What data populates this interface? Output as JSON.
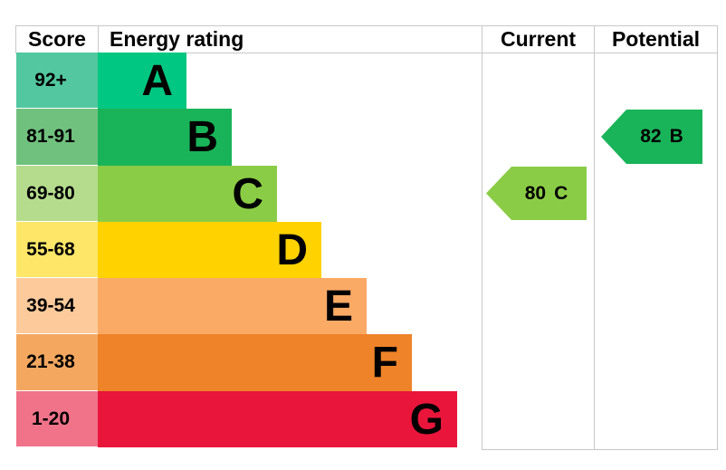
{
  "chart_data": {
    "type": "bar",
    "description": "Energy performance certificate rating chart",
    "columns": [
      "Score",
      "Energy rating",
      "Current",
      "Potential"
    ],
    "bands": [
      {
        "letter": "A",
        "score_range": "92+",
        "color": "#00c781",
        "tint": "#52c7a0"
      },
      {
        "letter": "B",
        "score_range": "81-91",
        "color": "#19b459",
        "tint": "#70c17e"
      },
      {
        "letter": "C",
        "score_range": "69-80",
        "color": "#8bcc46",
        "tint": "#b5dc8d"
      },
      {
        "letter": "D",
        "score_range": "55-68",
        "color": "#ffd200",
        "tint": "#fde668"
      },
      {
        "letter": "E",
        "score_range": "39-54",
        "color": "#fbaa65",
        "tint": "#fcca9b"
      },
      {
        "letter": "F",
        "score_range": "21-38",
        "color": "#ee8329",
        "tint": "#f4a75f"
      },
      {
        "letter": "G",
        "score_range": "1-20",
        "color": "#e9153b",
        "tint": "#f0738a"
      }
    ],
    "current": {
      "score": 80,
      "band": "C",
      "color": "#8bcc46"
    },
    "potential": {
      "score": 82,
      "band": "B",
      "color": "#19b459"
    },
    "grid_color": "#c8c8c8",
    "legend_position": "none"
  }
}
